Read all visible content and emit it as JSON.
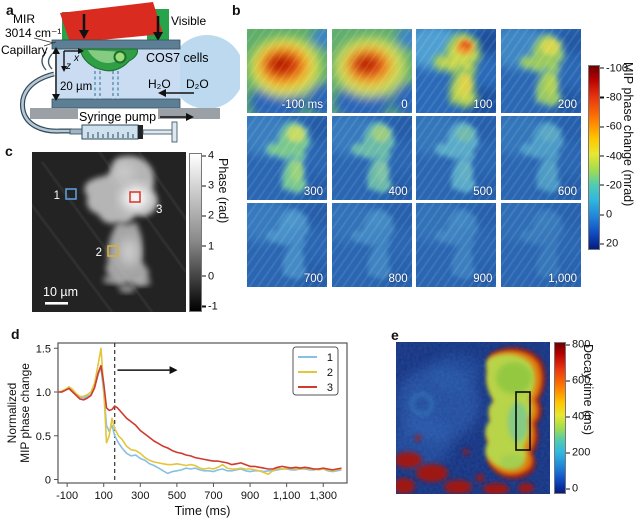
{
  "panels": {
    "a": {
      "label": "a",
      "mir_label": "MIR",
      "wavenumber": "3014 cm⁻¹",
      "visible_label": "Visible",
      "capillary_label": "Capillary",
      "cells_label": "COS7 cells",
      "axis_x": "x",
      "axis_z": "z",
      "gap_label": "20 µm",
      "h2o_label": "H₂O",
      "d2o_label": "D₂O",
      "pump_label": "Syringe pump"
    },
    "b": {
      "label": "b",
      "frames": [
        {
          "label": "-100 ms",
          "style": "hotA"
        },
        {
          "label": "0",
          "style": "hotB"
        },
        {
          "label": "100",
          "style": "y100"
        },
        {
          "label": "200",
          "style": "y200"
        },
        {
          "label": "300",
          "style": "g300"
        },
        {
          "label": "400",
          "style": "g400"
        },
        {
          "label": "500",
          "style": "c500"
        },
        {
          "label": "600",
          "style": "c600"
        },
        {
          "label": "700",
          "style": "f700"
        },
        {
          "label": "800",
          "style": "f800"
        },
        {
          "label": "900",
          "style": "f900"
        },
        {
          "label": "1,000",
          "style": "f1000"
        }
      ],
      "colorbar": {
        "ticks": [
          "-100",
          "-80",
          "-60",
          "-40",
          "-20",
          "0",
          "20"
        ],
        "title": "MIP phase change (mrad)"
      }
    },
    "c": {
      "label": "c",
      "rois": [
        {
          "id": "1",
          "color": "#5b9bd5"
        },
        {
          "id": "2",
          "color": "#d4b13d"
        },
        {
          "id": "3",
          "color": "#e03c31"
        }
      ],
      "scalebar": "10 µm",
      "colorbar": {
        "ticks": [
          "4",
          "3",
          "2",
          "1",
          "0",
          "-1"
        ],
        "title": "Phase (rad)"
      }
    },
    "d": {
      "label": "d"
    },
    "e": {
      "label": "e",
      "colorbar": {
        "ticks": [
          "800",
          "600",
          "400",
          "200",
          "0"
        ],
        "title": "Decay time (ms)"
      }
    }
  },
  "chart_data": {
    "type": "line",
    "xlabel": "Time (ms)",
    "ylabel_lines": [
      "Normalized",
      "MIP phase change"
    ],
    "xlim": [
      -150,
      1430
    ],
    "ylim": [
      -0.04,
      1.56
    ],
    "x_ticks": [
      -100,
      100,
      300,
      500,
      700,
      900,
      1100,
      1300
    ],
    "x_tick_labels": [
      "-100",
      "100",
      "300",
      "500",
      "700",
      "900",
      "1,100",
      "1,300"
    ],
    "y_ticks": [
      0,
      0.5,
      1.0,
      1.5
    ],
    "y_tick_labels": [
      "0",
      "0.5",
      "1.0",
      "1.5"
    ],
    "legend_position": "upper right",
    "grid": false,
    "annotations": {
      "dashed_line_x": 160,
      "arrow": {
        "from_x": 175,
        "to_x": 460,
        "y": 1.25
      }
    },
    "series": [
      {
        "name": "1",
        "color": "#85c1e5",
        "points": [
          [
            -150,
            1.0
          ],
          [
            -130,
            1.0
          ],
          [
            -110,
            1.02
          ],
          [
            -90,
            1.05
          ],
          [
            -70,
            1.02
          ],
          [
            -50,
            0.97
          ],
          [
            -30,
            0.94
          ],
          [
            -10,
            0.93
          ],
          [
            10,
            0.95
          ],
          [
            30,
            0.97
          ],
          [
            50,
            1.05
          ],
          [
            70,
            1.2
          ],
          [
            85,
            1.28
          ],
          [
            100,
            1.0
          ],
          [
            115,
            0.62
          ],
          [
            130,
            0.55
          ],
          [
            145,
            0.62
          ],
          [
            160,
            0.5
          ],
          [
            180,
            0.42
          ],
          [
            200,
            0.36
          ],
          [
            225,
            0.3
          ],
          [
            250,
            0.27
          ],
          [
            275,
            0.28
          ],
          [
            300,
            0.24
          ],
          [
            325,
            0.22
          ],
          [
            350,
            0.18
          ],
          [
            375,
            0.16
          ],
          [
            400,
            0.13
          ],
          [
            425,
            0.1
          ],
          [
            450,
            0.07
          ],
          [
            475,
            0.09
          ],
          [
            500,
            0.1
          ],
          [
            525,
            0.11
          ],
          [
            550,
            0.13
          ],
          [
            575,
            0.12
          ],
          [
            600,
            0.13
          ],
          [
            625,
            0.11
          ],
          [
            650,
            0.1
          ],
          [
            675,
            0.1
          ],
          [
            700,
            0.09
          ],
          [
            725,
            0.11
          ],
          [
            750,
            0.12
          ],
          [
            775,
            0.1
          ],
          [
            800,
            0.1
          ],
          [
            825,
            0.11
          ],
          [
            850,
            0.12
          ],
          [
            875,
            0.1
          ],
          [
            900,
            0.09
          ],
          [
            925,
            0.1
          ],
          [
            950,
            0.1
          ],
          [
            975,
            0.09
          ],
          [
            1000,
            0.1
          ],
          [
            1025,
            0.1
          ],
          [
            1050,
            0.11
          ],
          [
            1075,
            0.12
          ],
          [
            1100,
            0.12
          ],
          [
            1125,
            0.11
          ],
          [
            1150,
            0.11
          ],
          [
            1175,
            0.12
          ],
          [
            1200,
            0.12
          ],
          [
            1225,
            0.11
          ],
          [
            1250,
            0.11
          ],
          [
            1275,
            0.12
          ],
          [
            1300,
            0.12
          ],
          [
            1325,
            0.1
          ],
          [
            1350,
            0.09
          ],
          [
            1375,
            0.1
          ],
          [
            1400,
            0.11
          ]
        ]
      },
      {
        "name": "2",
        "color": "#e3c53e",
        "points": [
          [
            -150,
            1.0
          ],
          [
            -130,
            1.01
          ],
          [
            -110,
            1.03
          ],
          [
            -90,
            1.06
          ],
          [
            -70,
            1.03
          ],
          [
            -50,
            0.98
          ],
          [
            -30,
            0.95
          ],
          [
            -10,
            0.95
          ],
          [
            10,
            0.97
          ],
          [
            30,
            1.0
          ],
          [
            50,
            1.1
          ],
          [
            70,
            1.32
          ],
          [
            85,
            1.5
          ],
          [
            100,
            1.05
          ],
          [
            115,
            0.42
          ],
          [
            130,
            0.5
          ],
          [
            145,
            0.7
          ],
          [
            160,
            0.58
          ],
          [
            180,
            0.5
          ],
          [
            200,
            0.46
          ],
          [
            225,
            0.38
          ],
          [
            250,
            0.34
          ],
          [
            275,
            0.33
          ],
          [
            300,
            0.3
          ],
          [
            325,
            0.25
          ],
          [
            350,
            0.22
          ],
          [
            375,
            0.2
          ],
          [
            400,
            0.19
          ],
          [
            425,
            0.18
          ],
          [
            450,
            0.17
          ],
          [
            475,
            0.17
          ],
          [
            500,
            0.18
          ],
          [
            525,
            0.17
          ],
          [
            550,
            0.16
          ],
          [
            575,
            0.17
          ],
          [
            600,
            0.16
          ],
          [
            625,
            0.13
          ],
          [
            650,
            0.12
          ],
          [
            675,
            0.13
          ],
          [
            700,
            0.12
          ],
          [
            725,
            0.14
          ],
          [
            750,
            0.17
          ],
          [
            775,
            0.13
          ],
          [
            800,
            0.12
          ],
          [
            825,
            0.12
          ],
          [
            850,
            0.13
          ],
          [
            875,
            0.12
          ],
          [
            900,
            0.12
          ],
          [
            925,
            0.11
          ],
          [
            950,
            0.1
          ],
          [
            975,
            0.08
          ],
          [
            1000,
            0.06
          ],
          [
            1025,
            0.1
          ],
          [
            1050,
            0.13
          ],
          [
            1075,
            0.12
          ],
          [
            1100,
            0.12
          ],
          [
            1125,
            0.13
          ],
          [
            1150,
            0.12
          ],
          [
            1175,
            0.12
          ],
          [
            1200,
            0.13
          ],
          [
            1225,
            0.12
          ],
          [
            1250,
            0.12
          ],
          [
            1275,
            0.11
          ],
          [
            1300,
            0.12
          ],
          [
            1325,
            0.11
          ],
          [
            1350,
            0.1
          ],
          [
            1375,
            0.11
          ],
          [
            1400,
            0.12
          ]
        ]
      },
      {
        "name": "3",
        "color": "#cf3b2d",
        "points": [
          [
            -150,
            1.0
          ],
          [
            -130,
            1.0
          ],
          [
            -110,
            1.02
          ],
          [
            -90,
            1.04
          ],
          [
            -70,
            1.0
          ],
          [
            -50,
            0.96
          ],
          [
            -30,
            0.92
          ],
          [
            -10,
            0.91
          ],
          [
            10,
            0.93
          ],
          [
            30,
            0.96
          ],
          [
            50,
            1.05
          ],
          [
            70,
            1.22
          ],
          [
            85,
            1.3
          ],
          [
            100,
            1.1
          ],
          [
            115,
            0.82
          ],
          [
            130,
            0.79
          ],
          [
            145,
            0.8
          ],
          [
            160,
            0.84
          ],
          [
            175,
            0.82
          ],
          [
            200,
            0.76
          ],
          [
            225,
            0.7
          ],
          [
            250,
            0.66
          ],
          [
            275,
            0.62
          ],
          [
            300,
            0.56
          ],
          [
            325,
            0.52
          ],
          [
            350,
            0.48
          ],
          [
            375,
            0.44
          ],
          [
            400,
            0.41
          ],
          [
            425,
            0.38
          ],
          [
            450,
            0.36
          ],
          [
            475,
            0.33
          ],
          [
            500,
            0.31
          ],
          [
            525,
            0.3
          ],
          [
            550,
            0.28
          ],
          [
            575,
            0.27
          ],
          [
            600,
            0.25
          ],
          [
            625,
            0.24
          ],
          [
            650,
            0.23
          ],
          [
            675,
            0.22
          ],
          [
            700,
            0.21
          ],
          [
            725,
            0.21
          ],
          [
            750,
            0.2
          ],
          [
            775,
            0.19
          ],
          [
            800,
            0.17
          ],
          [
            825,
            0.18
          ],
          [
            850,
            0.19
          ],
          [
            875,
            0.17
          ],
          [
            900,
            0.15
          ],
          [
            925,
            0.15
          ],
          [
            950,
            0.14
          ],
          [
            975,
            0.13
          ],
          [
            1000,
            0.12
          ],
          [
            1025,
            0.12
          ],
          [
            1050,
            0.14
          ],
          [
            1075,
            0.15
          ],
          [
            1100,
            0.14
          ],
          [
            1125,
            0.13
          ],
          [
            1150,
            0.14
          ],
          [
            1175,
            0.13
          ],
          [
            1200,
            0.14
          ],
          [
            1225,
            0.13
          ],
          [
            1250,
            0.12
          ],
          [
            1275,
            0.12
          ],
          [
            1300,
            0.13
          ],
          [
            1325,
            0.12
          ],
          [
            1350,
            0.11
          ],
          [
            1375,
            0.12
          ],
          [
            1400,
            0.13
          ]
        ]
      }
    ]
  }
}
